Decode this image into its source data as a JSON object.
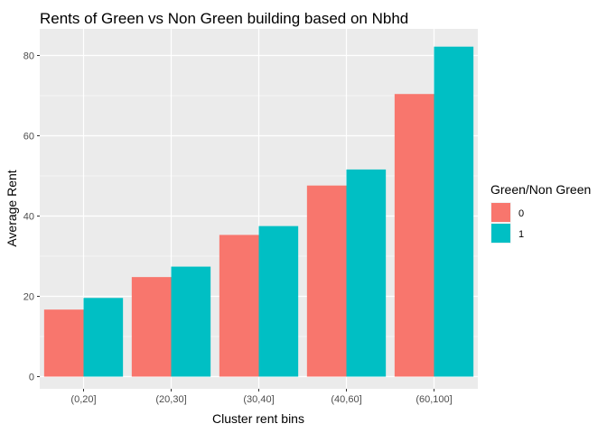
{
  "chart_data": {
    "type": "bar",
    "title": "Rents of Green vs Non Green building based on Nbhd",
    "xlabel": "Cluster rent bins",
    "ylabel": "Average Rent",
    "categories": [
      "(0,20]",
      "(20,30]",
      "(30,40]",
      "(40,60]",
      "(60,100]"
    ],
    "series": [
      {
        "name": "0",
        "color": "#F8766D",
        "values": [
          16.7,
          24.8,
          35.3,
          47.6,
          70.4
        ]
      },
      {
        "name": "1",
        "color": "#00BFC4",
        "values": [
          19.6,
          27.4,
          37.5,
          51.6,
          82.2
        ]
      }
    ],
    "ylim": [
      0,
      86
    ],
    "y_ticks": [
      0,
      20,
      40,
      60,
      80
    ],
    "grid": true,
    "legend": {
      "title": "Green/Non Green",
      "placement": "right"
    },
    "panel_background": "#EBEBEB",
    "grid_color": "#FFFFFF"
  }
}
